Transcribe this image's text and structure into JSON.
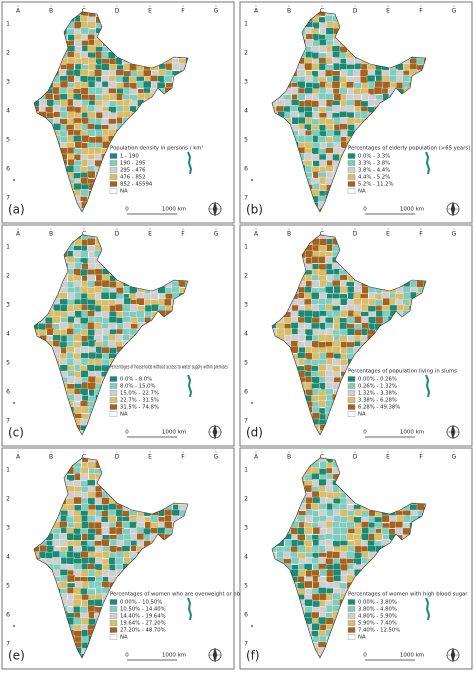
{
  "grid": {
    "columns": [
      "A",
      "B",
      "C",
      "D",
      "E",
      "F",
      "G"
    ],
    "rows": [
      "1",
      "2",
      "3",
      "4",
      "5",
      "6",
      "7"
    ]
  },
  "colors": [
    "#1b8a73",
    "#80cdbf",
    "#cfcfcf",
    "#d9bd6a",
    "#a5621e",
    "#ffffff"
  ],
  "panels": [
    {
      "label": "(a)",
      "legend_title": "Population density in persons / km²",
      "legend_items": [
        "1 - 190",
        "190 - 295",
        "295 - 476",
        "476 - 852",
        "852 - 45594",
        "NA"
      ],
      "scale": [
        "0",
        "1000 km"
      ]
    },
    {
      "label": "(b)",
      "legend_title": "Percentages of elderly population (>65 years)",
      "legend_items": [
        "0.0% - 3.3%",
        "3.3% - 3.8%",
        "3.8% - 4.4%",
        "4.4% - 5.2%",
        "5.2% - 11.2%",
        "NA"
      ],
      "scale": [
        "0",
        "1000 km"
      ]
    },
    {
      "label": "(c)",
      "legend_title": "Percentages of households without access to water supply within premises",
      "legend_items": [
        "0.0% - 8.0%",
        "8.0% - 15.0%",
        "15.0% - 22.7%",
        "22.7% - 31.5%",
        "31.5% - 74.8%",
        "NA"
      ],
      "scale": [
        "0",
        "1000 km"
      ]
    },
    {
      "label": "(d)",
      "legend_title": "Percentages of population living in slums",
      "legend_items": [
        "0.00% - 0.26%",
        "0.26% - 1.32%",
        "1.32% - 3.38%",
        "3.38% - 6.28%",
        "6.28% - 49.38%",
        "NA"
      ],
      "scale": [
        "0",
        "1000 km"
      ]
    },
    {
      "label": "(e)",
      "legend_title": "Percentages of women who are overweight or obese",
      "legend_items": [
        "0.00% - 10.50%",
        "10.50% - 14.40%",
        "14.40% - 19.64%",
        "19.64% - 27.20%",
        "27.20% - 48.70%",
        "NA"
      ],
      "scale": [
        "0",
        "1000 km"
      ]
    },
    {
      "label": "(f)",
      "legend_title": "Percentages of women with high blood sugar",
      "legend_items": [
        "0.00% - 3.80%",
        "3.80% - 4.80%",
        "4.80% - 5.90%",
        "5.90% - 7.40%",
        "7.40% - 12.50%",
        "NA"
      ],
      "scale": [
        "0",
        "1000 km"
      ]
    }
  ]
}
